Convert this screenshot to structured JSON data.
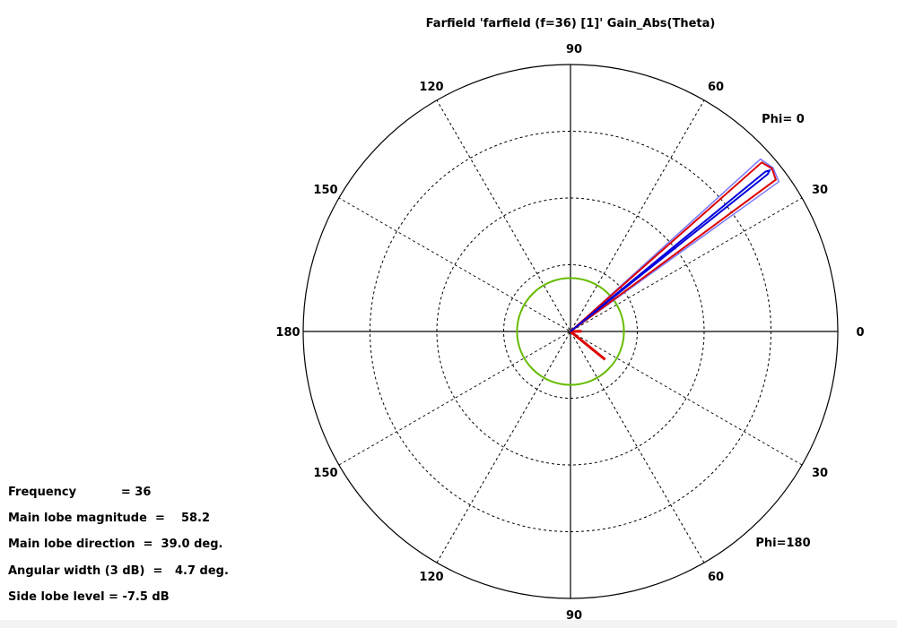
{
  "chart_data": {
    "type": "polar",
    "title": "Farfield 'farfield (f=36) [1]' Gain_Abs(Theta)",
    "angle_labels": {
      "top": "90",
      "upper_left": "120",
      "upper_right": "60",
      "left_upper": "150",
      "right_upper": "30",
      "left": "180",
      "right": "0",
      "left_lower": "150",
      "right_lower": "30",
      "lower_left": "120",
      "lower_right": "60",
      "bottom": "90"
    },
    "phi_labels": {
      "upper": "Phi=  0",
      "lower": "Phi=180"
    },
    "grid": true,
    "radial_max_db": 60,
    "radial_rings_db": [
      15,
      30,
      45
    ],
    "series": [
      {
        "color": "#dd0000",
        "lobe_direction_deg": 39.0,
        "lobe_peak_db": 58.2,
        "lobe_width_deg": 5.0,
        "minor_lobes": [
          {
            "direction_deg": -39.0,
            "magnitude_db": 10.0
          }
        ]
      },
      {
        "color": "#0000dd",
        "lobe_direction_deg": 39.0,
        "lobe_peak_db": 57.5,
        "lobe_width_deg": 0.8
      },
      {
        "color": "#7777ff",
        "lobe_direction_deg": 39.0,
        "lobe_peak_db": 58.5,
        "lobe_width_deg": 6.5
      }
    ],
    "reference_circle": {
      "color": "#66bb00",
      "radius_db": 12.0
    },
    "info": {
      "frequency": "Frequency           = 36",
      "main_lobe_magnitude": "Main lobe magnitude  =    58.2",
      "main_lobe_direction": "Main lobe direction  =  39.0 deg.",
      "angular_width": "Angular width (3 dB)  =   4.7 deg.",
      "side_lobe_level": "Side lobe level = -7.5 dB"
    }
  }
}
